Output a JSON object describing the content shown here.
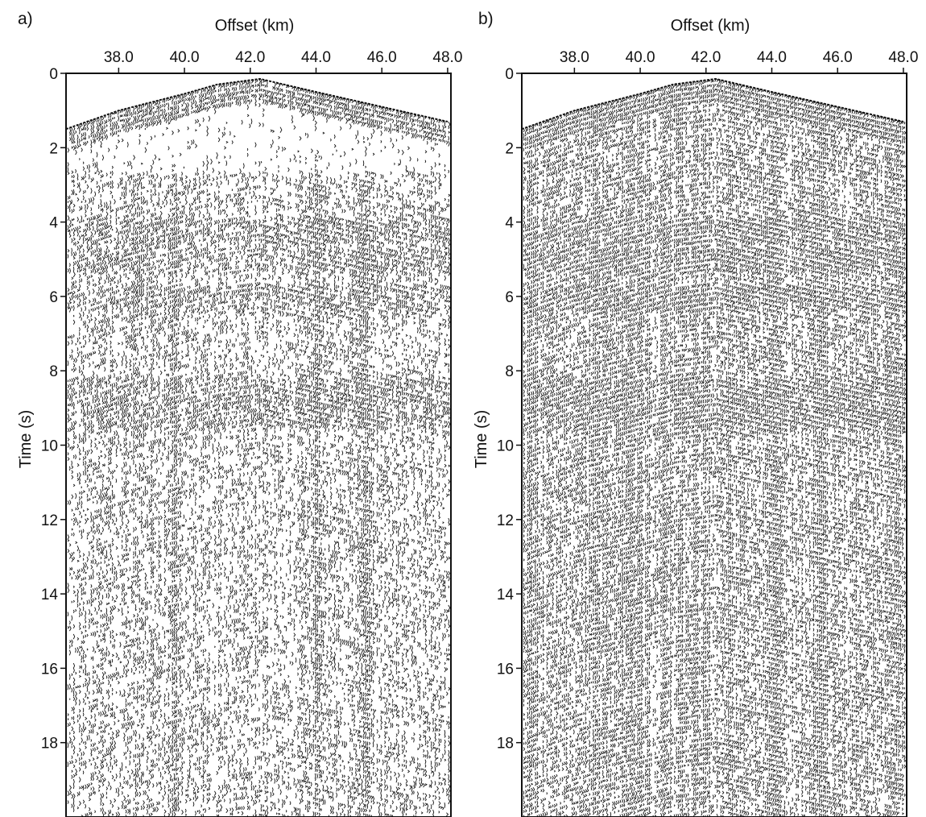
{
  "chart_data": [
    {
      "type": "seismic-section",
      "panel_label": "a)",
      "xlabel": "Offset (km)",
      "ylabel": "Time (s)",
      "x_ticks": [
        "38.0",
        "40.0",
        "42.0",
        "44.0",
        "46.0",
        "48.0"
      ],
      "y_ticks": [
        "0",
        "2",
        "4",
        "6",
        "8",
        "10",
        "12",
        "14",
        "16",
        "18"
      ],
      "xlim": [
        36.4,
        48.1
      ],
      "ylim": [
        0,
        20
      ],
      "axis_position": {
        "x": "top",
        "y": "left",
        "y_direction": "down"
      },
      "first_break_curve": {
        "x": [
          36.4,
          38.0,
          40.0,
          41.0,
          42.3,
          44.0,
          46.0,
          48.0
        ],
        "t": [
          1.5,
          1.0,
          0.55,
          0.3,
          0.15,
          0.5,
          0.9,
          1.3
        ]
      },
      "coherent_events_s": [
        4.2,
        5.0,
        6.0,
        8.5,
        9.2
      ],
      "strong_trace_zones_km": [
        39.7,
        44.0,
        45.5
      ],
      "trace_density": 0.42
    },
    {
      "type": "seismic-section",
      "panel_label": "b)",
      "xlabel": "Offset (km)",
      "ylabel": "Time (s)",
      "x_ticks": [
        "38.0",
        "40.0",
        "42.0",
        "44.0",
        "46.0",
        "48.0"
      ],
      "y_ticks": [
        "0",
        "2",
        "4",
        "6",
        "8",
        "10",
        "12",
        "14",
        "16",
        "18"
      ],
      "xlim": [
        36.4,
        48.1
      ],
      "ylim": [
        0,
        20
      ],
      "axis_position": {
        "x": "top",
        "y": "left",
        "y_direction": "down"
      },
      "first_break_curve": {
        "x": [
          36.4,
          38.0,
          40.0,
          41.0,
          42.3,
          44.0,
          46.0,
          48.0
        ],
        "t": [
          1.5,
          1.0,
          0.55,
          0.3,
          0.15,
          0.5,
          0.9,
          1.3
        ]
      },
      "coherent_events_s": [
        4.2,
        5.0,
        6.0,
        8.5,
        9.2
      ],
      "strong_trace_zones_km": [
        39.7,
        44.0,
        45.5
      ],
      "trace_density": 0.72
    }
  ],
  "colors": {
    "ink": "#111111",
    "background": "#ffffff"
  }
}
